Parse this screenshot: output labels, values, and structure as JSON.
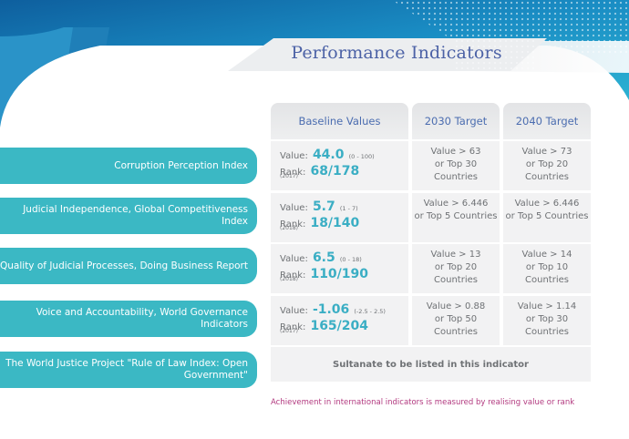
{
  "title": "Performance Indicators",
  "headers": [
    "Baseline Values",
    "2030 Target",
    "2040 Target"
  ],
  "rows": [
    {
      "indicator": "Corruption Perception Index",
      "value_label": "Value:",
      "value": "44.0",
      "range": "(0 - 100)",
      "rank_label": "Rank:",
      "rank": "68/178",
      "year": "(2017)",
      "target_2030_a": "Value > 63",
      "target_2030_b": "or Top 30 Countries",
      "target_2040_a": "Value > 73",
      "target_2040_b": "or Top 20 Countries"
    },
    {
      "indicator": "Judicial Independence, Global Competitiveness Index",
      "value_label": "Value:",
      "value": "5.7",
      "range": "(1 - 7)",
      "rank_label": "Rank:",
      "rank": "18/140",
      "year": "(2018)",
      "target_2030_a": "Value > 6.446",
      "target_2030_b": "or Top 5 Countries",
      "target_2040_a": "Value > 6.446",
      "target_2040_b": "or Top 5 Countries"
    },
    {
      "indicator": "Quality of Judicial Processes, Doing Business Report",
      "value_label": "Value:",
      "value": "6.5",
      "range": "(0 - 18)",
      "rank_label": "Rank:",
      "rank": "110/190",
      "year": "(2018)",
      "target_2030_a": "Value > 13",
      "target_2030_b": "or Top 20 Countries",
      "target_2040_a": "Value > 14",
      "target_2040_b": "or Top 10 Countries"
    },
    {
      "indicator": "Voice and Accountability, World Governance Indicators",
      "value_label": "Value:",
      "value": "-1.06",
      "range": "(-2.5 - 2.5)",
      "rank_label": "Rank:",
      "rank": "165/204",
      "year": "(2017)",
      "target_2030_a": "Value > 0.88",
      "target_2030_b": "or Top 50 Countries",
      "target_2040_a": "Value > 1.14",
      "target_2040_b": "or Top 30 Countries"
    }
  ],
  "last_row": {
    "indicator": "The World Justice Project \"Rule of Law Index: Open Government\"",
    "note": "Sultanate to be listed in this indicator"
  },
  "footnote": "Achievement in international indicators is measured by realising value or rank",
  "colors": {
    "teal": "#3bb8c4",
    "dark_blue": "#1f7fb8",
    "title_blue": "#4c62a6",
    "magenta": "#b2397f"
  }
}
